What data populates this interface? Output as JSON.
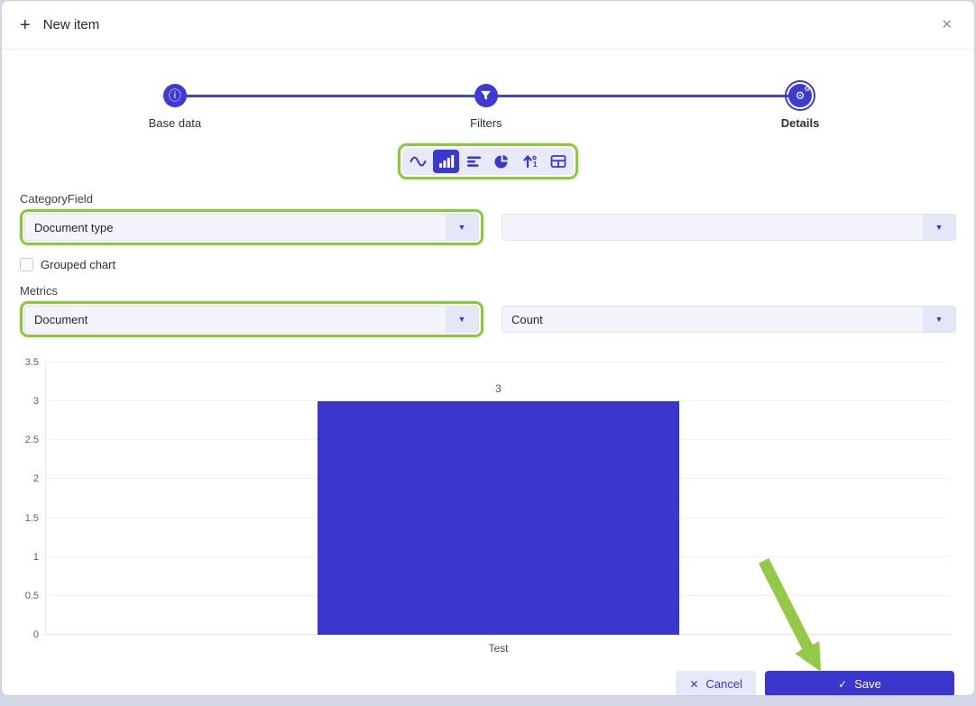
{
  "dialog": {
    "title": "New item"
  },
  "stepper": {
    "steps": [
      {
        "label": "Base data",
        "icon": "info-icon",
        "active": false
      },
      {
        "label": "Filters",
        "icon": "filter-icon",
        "active": false
      },
      {
        "label": "Details",
        "icon": "gears-icon",
        "active": true
      }
    ]
  },
  "chart_type_toolbar": {
    "options": [
      {
        "name": "line-chart",
        "selected": false
      },
      {
        "name": "bar-chart",
        "selected": true
      },
      {
        "name": "horizontal-bar-chart",
        "selected": false
      },
      {
        "name": "pie-chart",
        "selected": false
      },
      {
        "name": "numeric-metric",
        "selected": false
      },
      {
        "name": "table",
        "selected": false
      }
    ]
  },
  "form": {
    "category_field_label": "CategoryField",
    "category_field_value": "Document type",
    "category_subfield_value": "",
    "grouped_chart_label": "Grouped chart",
    "grouped_chart_checked": false,
    "metrics_label": "Metrics",
    "metrics_field_value": "Document",
    "metrics_aggregation_value": "Count"
  },
  "chart_data": {
    "type": "bar",
    "categories": [
      "Test"
    ],
    "values": [
      3
    ],
    "data_labels": [
      "3"
    ],
    "ylim": [
      0,
      3.5
    ],
    "yticks": [
      0,
      0.5,
      1,
      1.5,
      2,
      2.5,
      3,
      3.5
    ],
    "bar_color": "#3b36ce",
    "bar_width_pct": 40,
    "grid": true,
    "title": "",
    "xlabel": "",
    "ylabel": ""
  },
  "footer": {
    "cancel_label": "Cancel",
    "save_label": "Save"
  },
  "colors": {
    "primary": "#3b36ce",
    "annotation_green": "#8dc63f",
    "toolbar_bg": "#e8eafa"
  }
}
